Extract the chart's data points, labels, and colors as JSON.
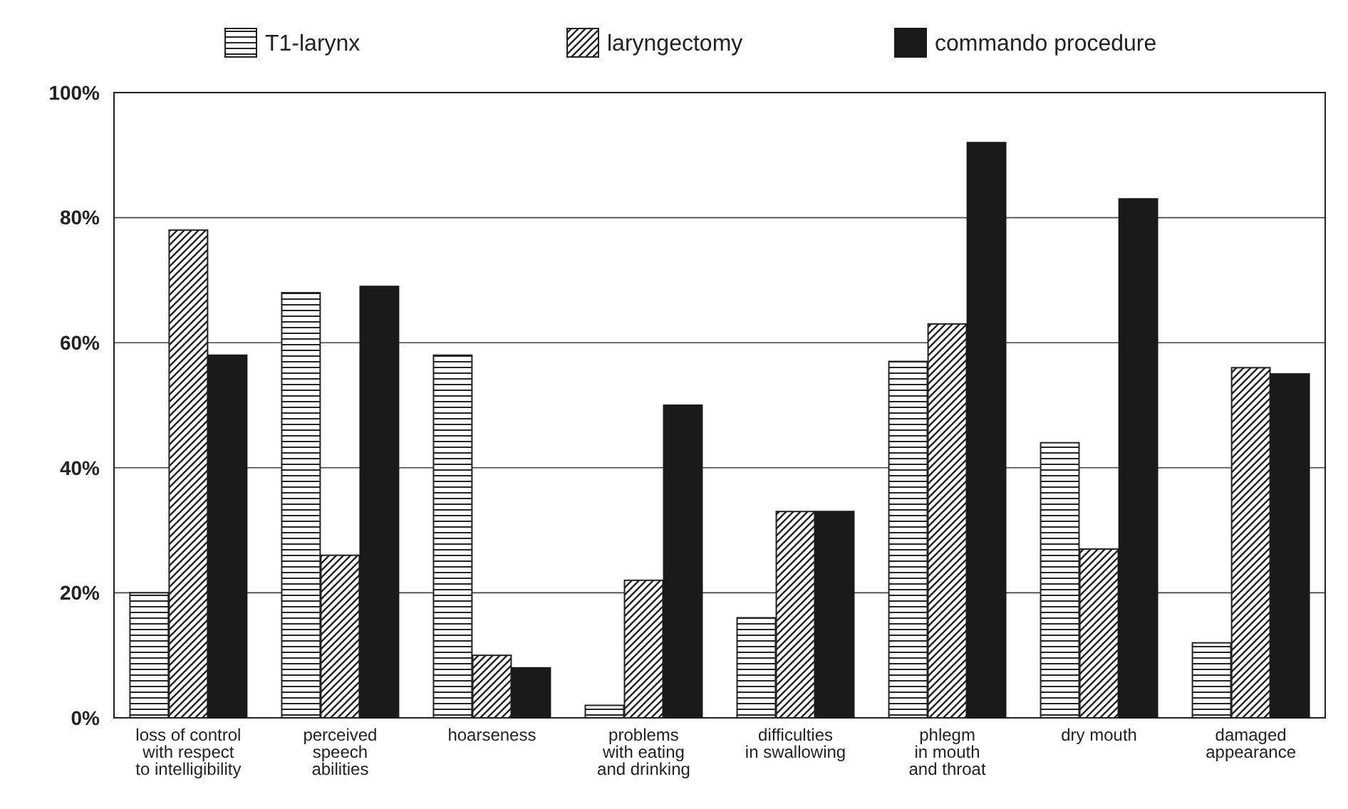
{
  "chart_data": {
    "type": "bar",
    "categories": [
      "loss of control\nwith respect\nto intelligibility",
      "perceived\nspeech\nabilities",
      "hoarseness",
      "problems\nwith eating\nand drinking",
      "difficulties\nin swallowing",
      "phlegm\nin mouth\nand throat",
      "dry mouth",
      "damaged\nappearance"
    ],
    "series": [
      {
        "name": "T1-larynx",
        "color": "#222222",
        "values": [
          20,
          68,
          58,
          2,
          16,
          57,
          44,
          12
        ]
      },
      {
        "name": "laryngectomy",
        "color": "#222222",
        "values": [
          78,
          26,
          10,
          22,
          33,
          63,
          27,
          56
        ]
      },
      {
        "name": "commando procedure",
        "color": "#1a1a1a",
        "values": [
          58,
          69,
          8,
          50,
          33,
          92,
          83,
          55
        ]
      }
    ],
    "ylim": [
      0,
      100
    ],
    "yticks": [
      {
        "value": 0,
        "label": "0%"
      },
      {
        "value": 20,
        "label": "20%"
      },
      {
        "value": 40,
        "label": "40%"
      },
      {
        "value": 60,
        "label": "60%"
      },
      {
        "value": 80,
        "label": "80%"
      },
      {
        "value": 100,
        "label": "100%"
      }
    ],
    "grid": "y",
    "legend": "top"
  }
}
